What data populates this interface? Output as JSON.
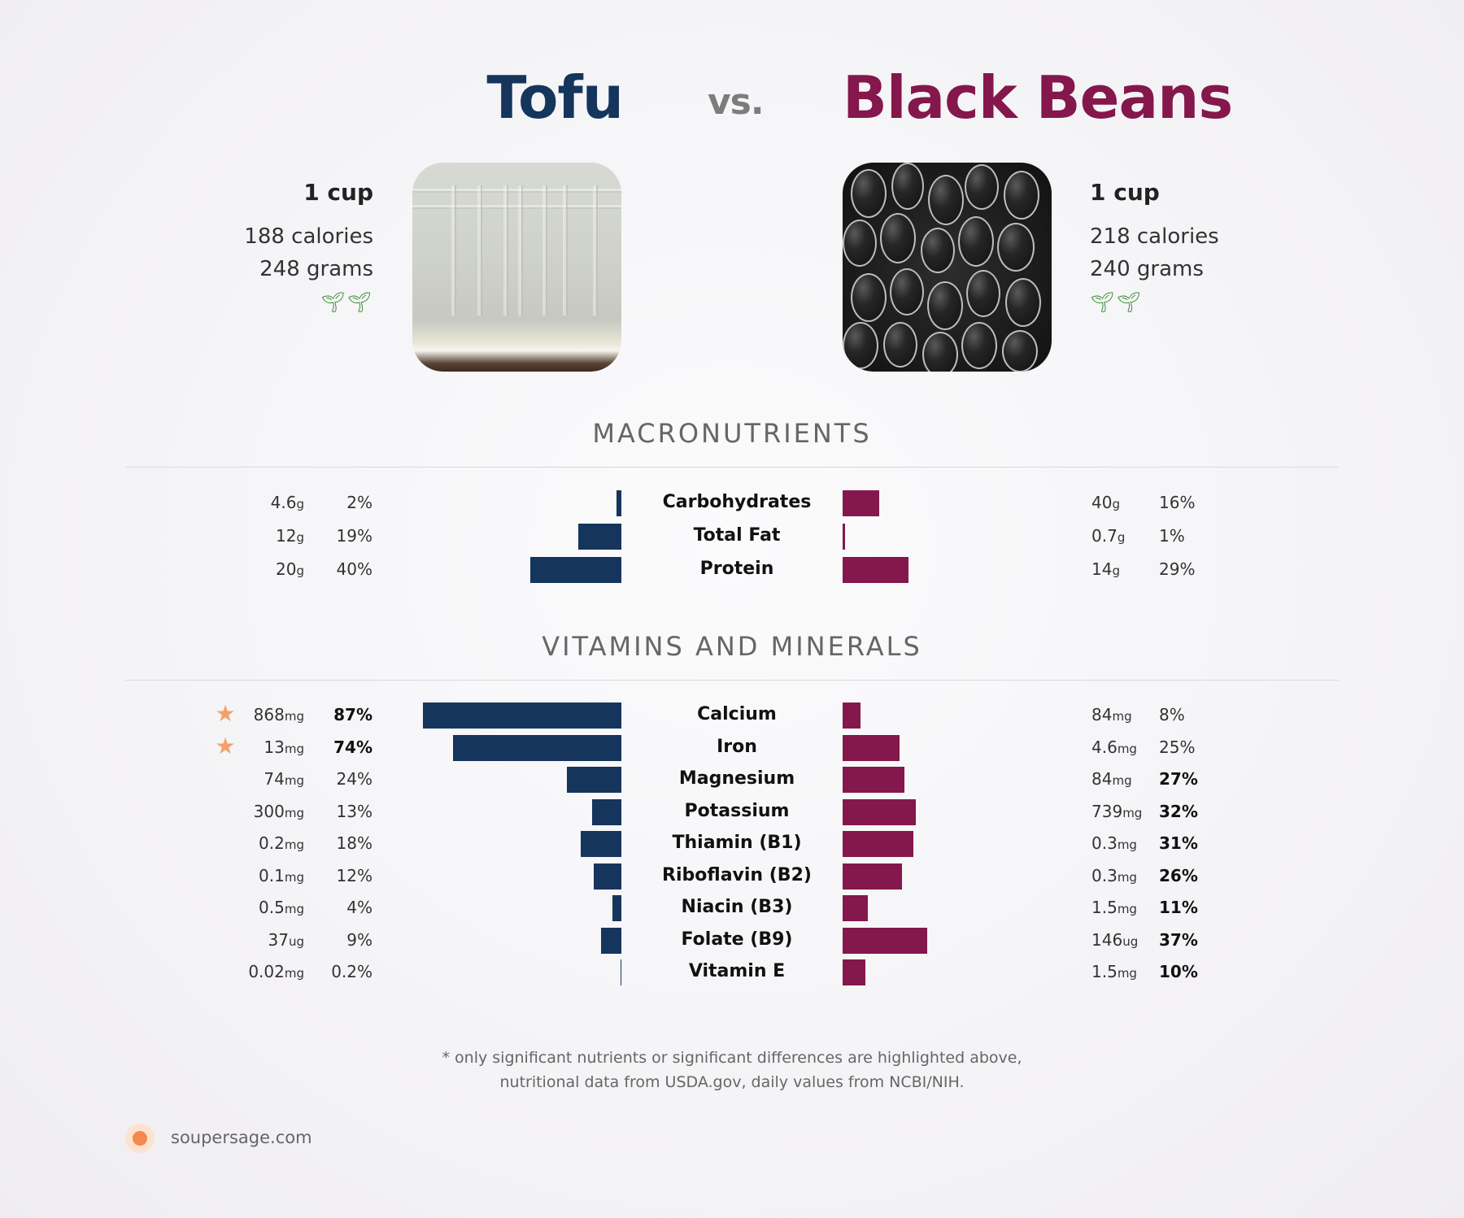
{
  "header": {
    "left_title": "Tofu",
    "vs": "vs.",
    "right_title": "Black Beans",
    "left_color": "#15355c",
    "right_color": "#84174b"
  },
  "left_food": {
    "serving": "1 cup",
    "calories": "188 calories",
    "grams": "248 grams",
    "badge_icons": "sprout-icon"
  },
  "right_food": {
    "serving": "1 cup",
    "calories": "218 calories",
    "grams": "240 grams",
    "badge_icons": "sprout-icon"
  },
  "macro_title": "MACRONUTRIENTS",
  "macros": [
    {
      "name": "Carbohydrates",
      "lv": "4.6",
      "lu": "g",
      "lp": "2%",
      "lpct": 2,
      "rv": "40",
      "ru": "g",
      "rp": "16%",
      "rpct": 16,
      "lbold": false,
      "rbold": false,
      "star": false
    },
    {
      "name": "Total Fat",
      "lv": "12",
      "lu": "g",
      "lp": "19%",
      "lpct": 19,
      "rv": "0.7",
      "ru": "g",
      "rp": "1%",
      "rpct": 1,
      "lbold": false,
      "rbold": false,
      "star": false
    },
    {
      "name": "Protein",
      "lv": "20",
      "lu": "g",
      "lp": "40%",
      "lpct": 40,
      "rv": "14",
      "ru": "g",
      "rp": "29%",
      "rpct": 29,
      "lbold": false,
      "rbold": false,
      "star": false
    }
  ],
  "vitamin_title": "VITAMINS AND MINERALS",
  "vitamins": [
    {
      "name": "Calcium",
      "lv": "868",
      "lu": "mg",
      "lp": "87%",
      "lpct": 87,
      "rv": "84",
      "ru": "mg",
      "rp": "8%",
      "rpct": 8,
      "lbold": true,
      "rbold": false,
      "star": true
    },
    {
      "name": "Iron",
      "lv": "13",
      "lu": "mg",
      "lp": "74%",
      "lpct": 74,
      "rv": "4.6",
      "ru": "mg",
      "rp": "25%",
      "rpct": 25,
      "lbold": true,
      "rbold": false,
      "star": true
    },
    {
      "name": "Magnesium",
      "lv": "74",
      "lu": "mg",
      "lp": "24%",
      "lpct": 24,
      "rv": "84",
      "ru": "mg",
      "rp": "27%",
      "rpct": 27,
      "lbold": false,
      "rbold": true,
      "star": false
    },
    {
      "name": "Potassium",
      "lv": "300",
      "lu": "mg",
      "lp": "13%",
      "lpct": 13,
      "rv": "739",
      "ru": "mg",
      "rp": "32%",
      "rpct": 32,
      "lbold": false,
      "rbold": true,
      "star": false
    },
    {
      "name": "Thiamin (B1)",
      "lv": "0.2",
      "lu": "mg",
      "lp": "18%",
      "lpct": 18,
      "rv": "0.3",
      "ru": "mg",
      "rp": "31%",
      "rpct": 31,
      "lbold": false,
      "rbold": true,
      "star": false
    },
    {
      "name": "Riboflavin (B2)",
      "lv": "0.1",
      "lu": "mg",
      "lp": "12%",
      "lpct": 12,
      "rv": "0.3",
      "ru": "mg",
      "rp": "26%",
      "rpct": 26,
      "lbold": false,
      "rbold": true,
      "star": false
    },
    {
      "name": "Niacin (B3)",
      "lv": "0.5",
      "lu": "mg",
      "lp": "4%",
      "lpct": 4,
      "rv": "1.5",
      "ru": "mg",
      "rp": "11%",
      "rpct": 11,
      "lbold": false,
      "rbold": true,
      "star": false
    },
    {
      "name": "Folate (B9)",
      "lv": "37",
      "lu": "ug",
      "lp": "9%",
      "lpct": 9,
      "rv": "146",
      "ru": "ug",
      "rp": "37%",
      "rpct": 37,
      "lbold": false,
      "rbold": true,
      "star": false
    },
    {
      "name": "Vitamin E",
      "lv": "0.02",
      "lu": "mg",
      "lp": "0.2%",
      "lpct": 0.2,
      "rv": "1.5",
      "ru": "mg",
      "rp": "10%",
      "rpct": 10,
      "lbold": false,
      "rbold": true,
      "star": false
    }
  ],
  "footnote_line1": "* only significant nutrients or significant differences are highlighted above,",
  "footnote_line2": "nutritional data from USDA.gov, daily values from NCBI/NIH.",
  "brand": "soupersage.com"
}
